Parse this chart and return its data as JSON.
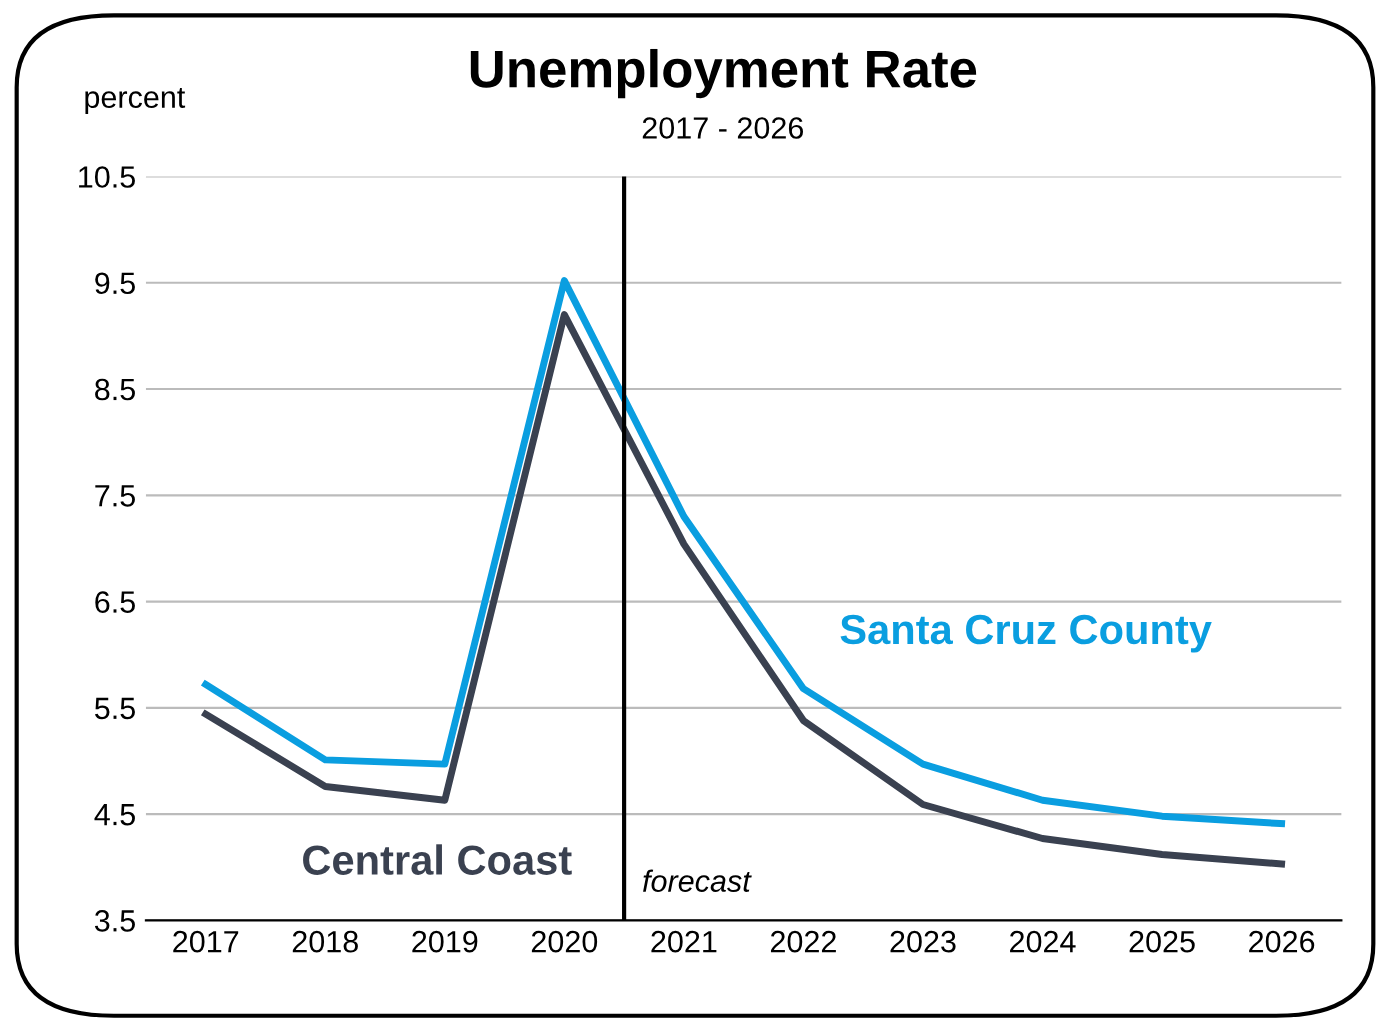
{
  "chart_data": {
    "type": "line",
    "title": "Unemployment Rate",
    "subtitle": "2017 - 2026",
    "ylabel": "percent",
    "x": [
      2017,
      2018,
      2019,
      2020,
      2021,
      2022,
      2023,
      2024,
      2025,
      2026
    ],
    "series": [
      {
        "name": "Santa Cruz County",
        "color": "#0a9ee0",
        "values": [
          5.72,
          5.01,
          4.97,
          9.52,
          7.3,
          5.68,
          4.97,
          4.63,
          4.48,
          4.41
        ]
      },
      {
        "name": "Central Coast",
        "color": "#3a4150",
        "values": [
          5.44,
          4.76,
          4.63,
          9.2,
          7.04,
          5.38,
          4.59,
          4.27,
          4.12,
          4.03
        ]
      }
    ],
    "xlim": [
      2016.5,
      2026.5
    ],
    "xticks": [
      2017,
      2018,
      2019,
      2020,
      2021,
      2022,
      2023,
      2024,
      2025,
      2026
    ],
    "ylim": [
      3.5,
      10.5
    ],
    "yticks": [
      3.5,
      4.5,
      5.5,
      6.5,
      7.5,
      8.5,
      9.5,
      10.5
    ],
    "grid": "y",
    "legend": false,
    "marker": "none",
    "line_style": "solid",
    "ref_lines": [
      {
        "axis": "x",
        "value": 2020.5,
        "label": "forecast",
        "color": "#000000"
      }
    ]
  }
}
